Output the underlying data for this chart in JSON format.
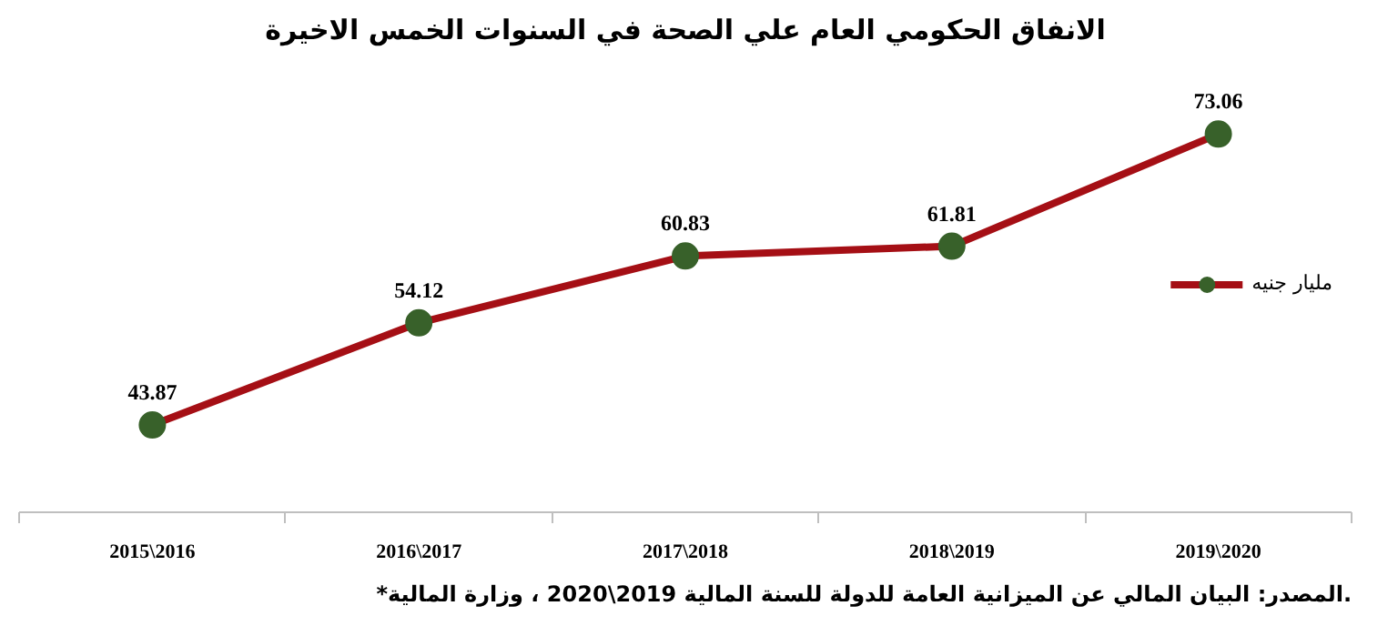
{
  "chart_data": {
    "type": "line",
    "title": "الانفاق الحكومي العام علي الصحة في السنوات الخمس الاخيرة",
    "categories": [
      "2015\\2016",
      "2016\\2017",
      "2017\\2018",
      "2018\\2019",
      "2019\\2020"
    ],
    "series": [
      {
        "name": "مليار جنيه",
        "color": "#a50f15",
        "values": [
          43.87,
          54.12,
          60.83,
          61.81,
          73.06
        ]
      }
    ],
    "marker": "circle",
    "data_labels": true,
    "legend": "right",
    "grid": false,
    "annotations": [
      "*المصدر: البيان المالي عن الميزانية العامة للدولة للسنة المالية 2019\\2020 ، وزارة المالية."
    ]
  }
}
